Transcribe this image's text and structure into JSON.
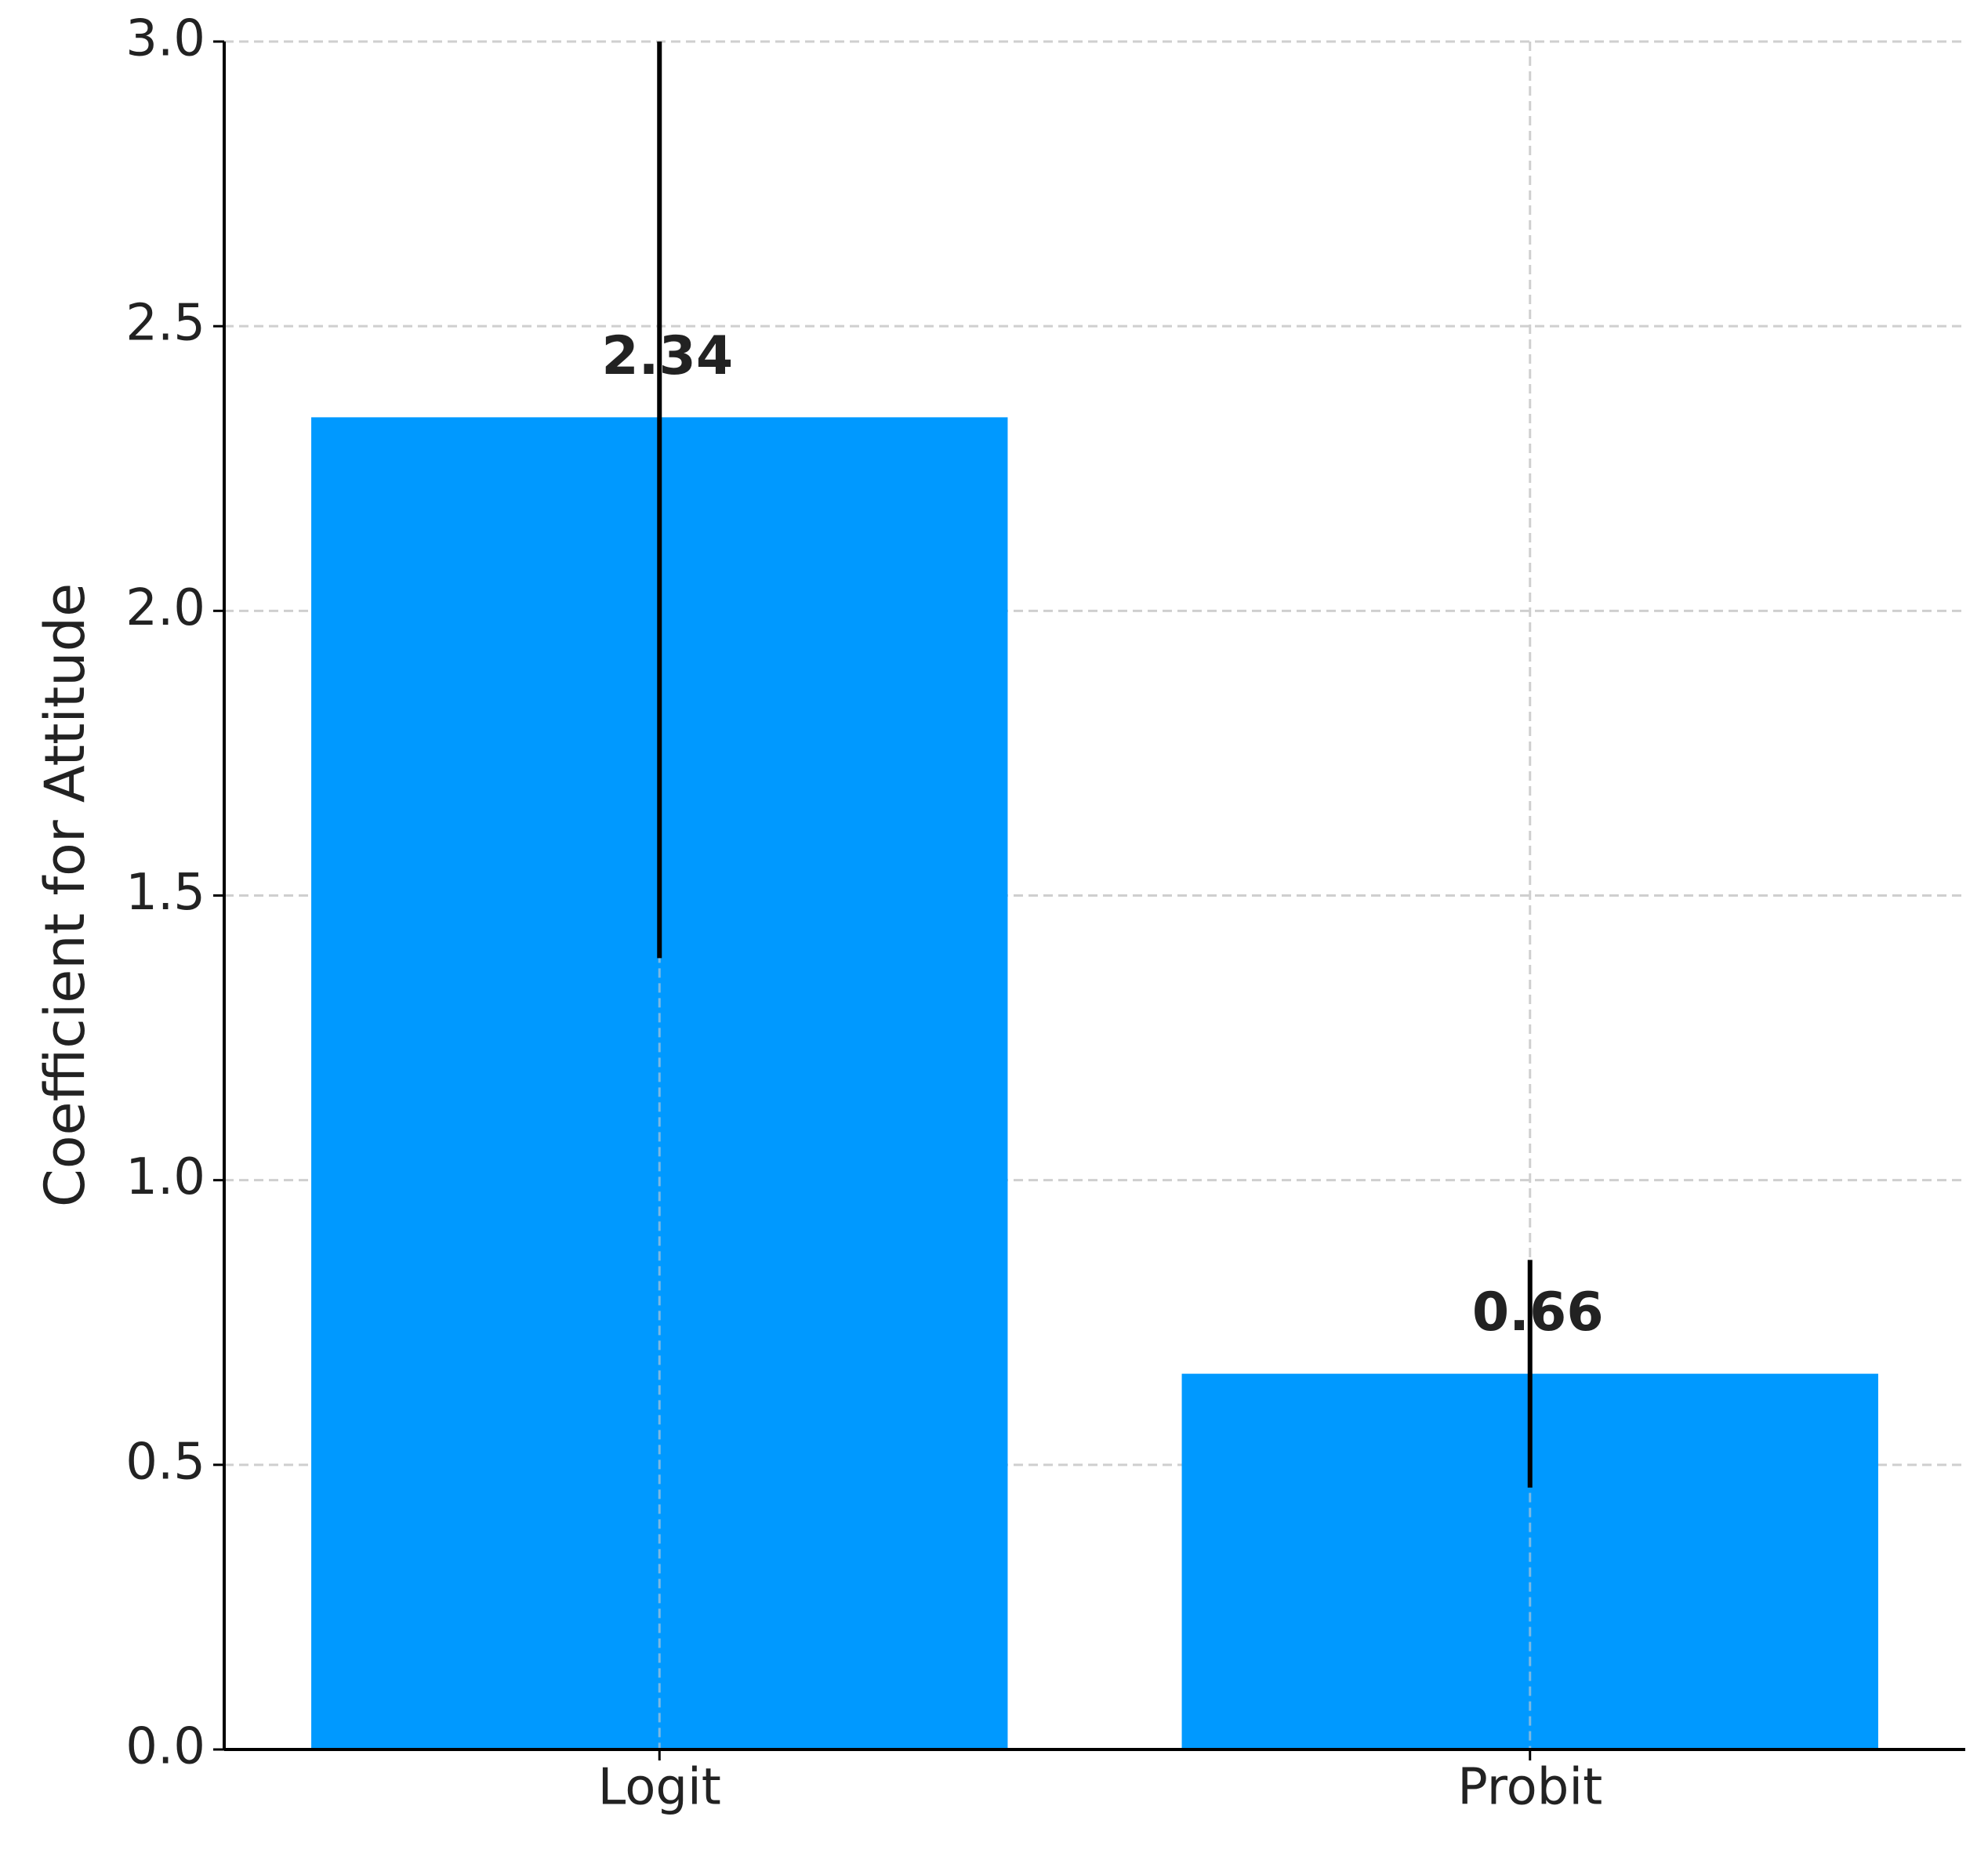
{
  "chart_data": {
    "type": "bar",
    "ylabel": "Coefficient for Attitude",
    "categories": [
      "Logit",
      "Probit"
    ],
    "values": [
      2.34,
      0.66
    ],
    "errors": [
      0.95,
      0.2
    ],
    "color": "#0099ff",
    "ylim": [
      0,
      3
    ],
    "yticks": [
      {
        "value": 0,
        "label": "0.0"
      },
      0.5,
      {
        "value": 1,
        "label": "1.0"
      },
      1.5,
      {
        "value": 2,
        "label": "2.0"
      },
      2.5,
      {
        "value": 3,
        "label": "3.0"
      }
    ],
    "grid": true
  }
}
